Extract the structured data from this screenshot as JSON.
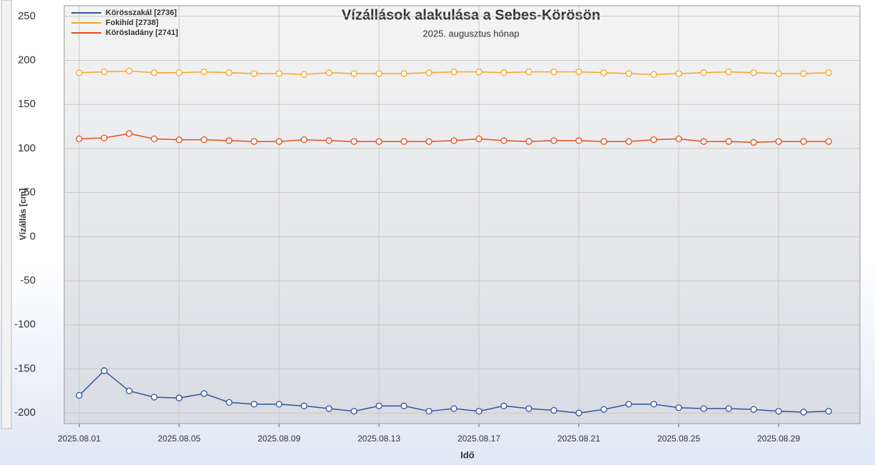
{
  "chart_data": {
    "type": "line",
    "title": "Vízállások alakulása a Sebes-Körösön",
    "subtitle": "2025. augusztus hónap",
    "x_label": "Idő",
    "y_label": "Vízállás [cm]",
    "x": [
      "2025.08.01",
      "2025.08.02",
      "2025.08.03",
      "2025.08.04",
      "2025.08.05",
      "2025.08.06",
      "2025.08.07",
      "2025.08.08",
      "2025.08.09",
      "2025.08.10",
      "2025.08.11",
      "2025.08.12",
      "2025.08.13",
      "2025.08.14",
      "2025.08.15",
      "2025.08.16",
      "2025.08.17",
      "2025.08.18",
      "2025.08.19",
      "2025.08.20",
      "2025.08.21",
      "2025.08.22",
      "2025.08.23",
      "2025.08.24",
      "2025.08.25",
      "2025.08.26",
      "2025.08.27",
      "2025.08.28",
      "2025.08.29",
      "2025.08.30",
      "2025.08.31"
    ],
    "series": [
      {
        "name": "Körösszakál [2736]",
        "color": "#2f55a4",
        "values": [
          -180,
          -152,
          -175,
          -182,
          -183,
          -178,
          -188,
          -190,
          -190,
          -192,
          -195,
          -198,
          -192,
          -192,
          -198,
          -195,
          -198,
          -192,
          -195,
          -197,
          -200,
          -196,
          -190,
          -190,
          -194,
          -195,
          -195,
          -196,
          -198,
          -199,
          -198
        ]
      },
      {
        "name": "Fokihíd [2738]",
        "color": "#f5a623",
        "values": [
          186,
          187,
          188,
          186,
          186,
          187,
          186,
          185,
          185,
          184,
          186,
          185,
          185,
          185,
          186,
          187,
          187,
          186,
          187,
          187,
          187,
          186,
          185,
          184,
          185,
          186,
          187,
          186,
          185,
          185,
          186
        ]
      },
      {
        "name": "Körösladány [2741]",
        "color": "#e84d1c",
        "values": [
          111,
          112,
          117,
          111,
          110,
          110,
          109,
          108,
          108,
          110,
          109,
          108,
          108,
          108,
          108,
          109,
          111,
          109,
          108,
          109,
          109,
          108,
          108,
          110,
          111,
          108,
          108,
          107,
          108,
          108,
          108
        ]
      }
    ],
    "ylim": [
      -212,
      262
    ],
    "yticks": [
      -200,
      -150,
      -100,
      -50,
      0,
      50,
      100,
      150,
      200,
      250
    ],
    "xticks": [
      "2025.08.01",
      "2025.08.05",
      "2025.08.09",
      "2025.08.13",
      "2025.08.17",
      "2025.08.21",
      "2025.08.25",
      "2025.08.29"
    ],
    "grid": true,
    "legend": "top-left"
  }
}
